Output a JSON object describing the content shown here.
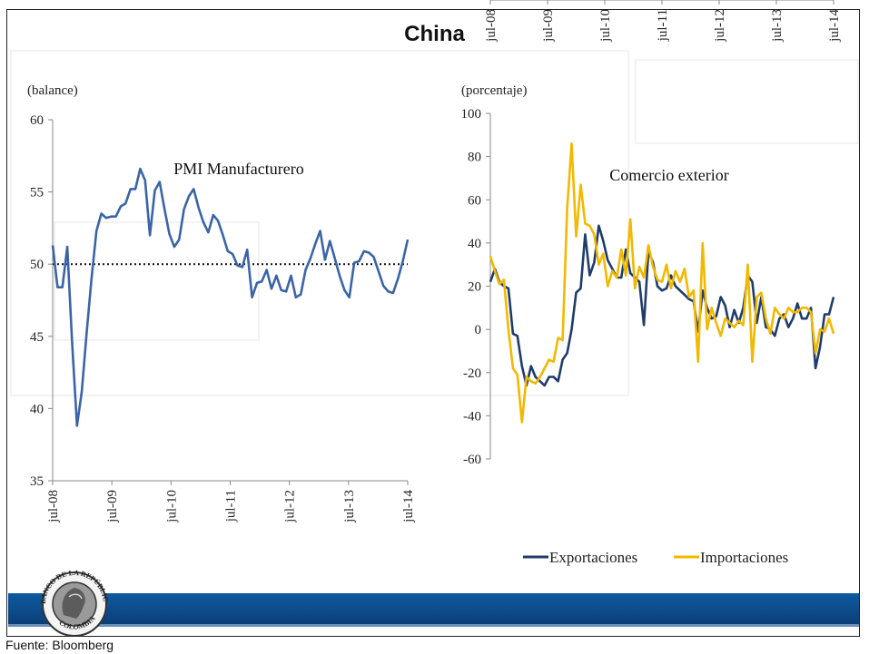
{
  "title": "China",
  "source": "Fuente: Bloomberg",
  "logo": {
    "top_text": "BANCO DE LA REPÚBLICA",
    "bottom_text": "COLOMBIA"
  },
  "colors": {
    "exportaciones": "#1f3d6b",
    "importaciones": "#f3b800",
    "pmi": "#3b64a8",
    "band": "#0f5aa0"
  },
  "chart_data": [
    {
      "type": "line",
      "title": "PMI Manufacturero",
      "ylabel": "(balance)",
      "ylim": [
        35,
        60
      ],
      "yticks": [
        35,
        40,
        45,
        50,
        55,
        60
      ],
      "xticks": [
        "jul-08",
        "jul-09",
        "jul-10",
        "jul-11",
        "jul-12",
        "jul-13",
        "jul-14"
      ],
      "x_range": [
        "2008-07",
        "2014-07"
      ],
      "reference_line": 50,
      "series": [
        {
          "values": [
            51.3,
            48.4,
            48.4,
            51.2,
            44.6,
            38.8,
            41.2,
            45.3,
            49.0,
            52.3,
            53.5,
            53.2,
            53.3,
            53.3,
            54.0,
            54.2,
            55.2,
            55.2,
            56.6,
            55.8,
            52.0,
            55.1,
            55.7,
            53.8,
            52.1,
            51.2,
            51.7,
            53.8,
            54.7,
            55.2,
            53.9,
            52.9,
            52.2,
            53.4,
            53.0,
            52.0,
            50.9,
            50.7,
            49.9,
            49.8,
            51.0,
            47.7,
            48.7,
            48.8,
            49.6,
            48.3,
            49.2,
            48.2,
            48.1,
            49.2,
            47.7,
            47.9,
            49.6,
            50.4,
            51.4,
            52.3,
            50.3,
            51.6,
            50.4,
            49.2,
            48.2,
            47.7,
            50.1,
            50.2,
            50.9,
            50.8,
            50.5,
            49.5,
            48.5,
            48.1,
            48.0,
            49.0,
            50.2,
            51.7
          ]
        }
      ]
    },
    {
      "type": "line",
      "title": "Comercio exterior",
      "ylabel": "(porcentaje)",
      "ylim": [
        -60,
        100
      ],
      "yticks": [
        -60,
        -40,
        -20,
        0,
        20,
        40,
        60,
        80,
        100
      ],
      "xticks": [
        "jul-08",
        "jul-09",
        "jul-10",
        "jul-11",
        "jul-12",
        "jul-13",
        "jul-14"
      ],
      "x_range": [
        "2008-07",
        "2014-07"
      ],
      "series": [
        {
          "name": "Exportaciones",
          "values": [
            22.0,
            28.0,
            22.0,
            20.0,
            19.0,
            -2.0,
            -3.0,
            -17.0,
            -26.0,
            -17.0,
            -22.0,
            -24.0,
            -26.0,
            -22.0,
            -22.0,
            -24.0,
            -14.0,
            -11.0,
            0.0,
            17.0,
            19.0,
            44.0,
            25.0,
            31.0,
            48.0,
            41.0,
            32.0,
            28.0,
            24.0,
            24.0,
            37.0,
            26.0,
            24.0,
            22.0,
            2.0,
            36.0,
            31.0,
            20.0,
            18.0,
            19.0,
            25.0,
            20.0,
            18.0,
            16.0,
            14.0,
            13.0,
            -1.0,
            18.0,
            10.0,
            5.0,
            6.0,
            15.0,
            11.0,
            1.0,
            9.0,
            3.0,
            10.0,
            25.0,
            22.0,
            3.0,
            15.0,
            1.0,
            0.0,
            -3.0,
            5.0,
            7.0,
            1.0,
            5.0,
            12.0,
            5.0,
            5.0,
            10.0,
            -18.0,
            -8.0,
            7.0,
            7.0,
            15.0
          ]
        },
        {
          "name": "Importaciones",
          "values": [
            34.0,
            27.0,
            21.0,
            23.0,
            0.0,
            -18.0,
            -21.0,
            -43.0,
            -22.0,
            -24.0,
            -25.0,
            -22.0,
            -18.0,
            -14.0,
            -15.0,
            -4.0,
            -5.0,
            56.0,
            86.0,
            43.0,
            67.0,
            49.0,
            48.0,
            44.0,
            30.0,
            35.0,
            20.0,
            27.0,
            24.0,
            37.0,
            25.0,
            51.0,
            19.0,
            29.0,
            24.0,
            39.0,
            29.0,
            23.0,
            22.0,
            30.0,
            19.0,
            27.0,
            22.0,
            28.0,
            15.0,
            18.0,
            -15.0,
            40.0,
            0.0,
            10.0,
            3.0,
            -3.0,
            5.0,
            3.0,
            1.0,
            4.0,
            2.0,
            30.0,
            -15.0,
            15.0,
            17.0,
            5.0,
            -2.0,
            10.0,
            7.0,
            5.0,
            10.0,
            8.0,
            8.0,
            10.0,
            10.0,
            8.0,
            -11.0,
            0.0,
            -1.0,
            5.0,
            -2.0
          ]
        }
      ]
    }
  ]
}
